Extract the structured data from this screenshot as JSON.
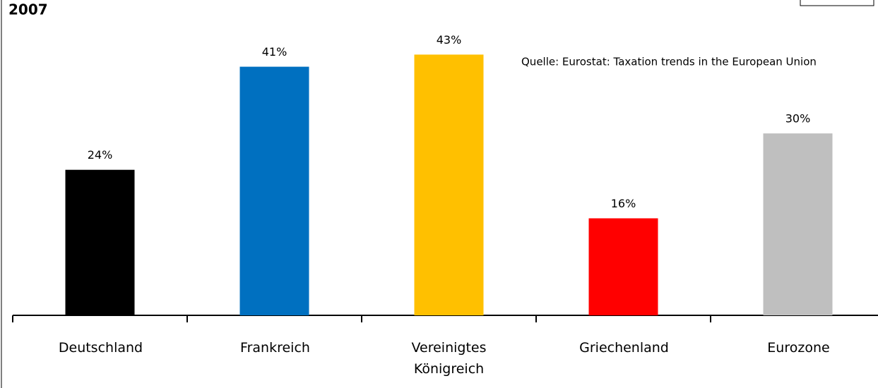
{
  "chart_data": {
    "type": "bar",
    "title": "2007",
    "annotation": "Quelle: Eurostat: Taxation trends in the European Union",
    "categories": [
      "Deutschland",
      "Frankreich",
      "Vereinigtes Königreich",
      "Griechenland",
      "Eurozone"
    ],
    "values": [
      24,
      41,
      43,
      16,
      30
    ],
    "value_labels": [
      "24%",
      "41%",
      "43%",
      "16%",
      "30%"
    ],
    "colors": [
      "#000000",
      "#0070c0",
      "#ffc000",
      "#ff0000",
      "#bfbfbf"
    ],
    "ylim": [
      0,
      47
    ]
  }
}
